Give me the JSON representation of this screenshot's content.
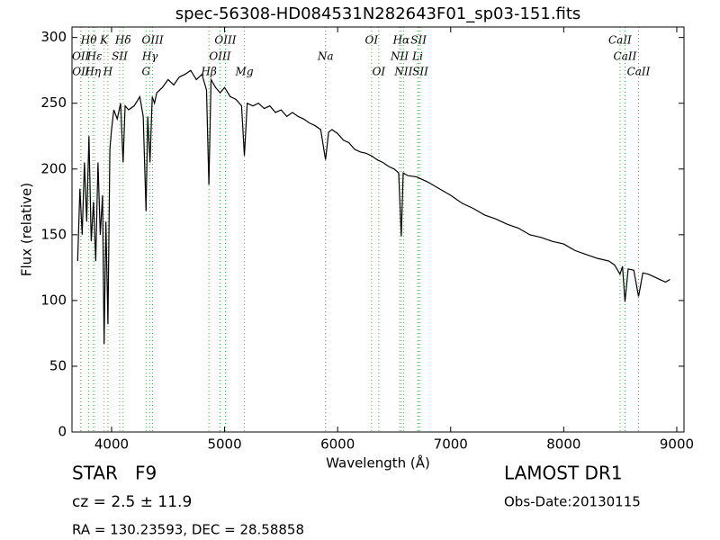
{
  "chart_data": {
    "type": "line",
    "title": "spec-56308-HD084531N282643F01_sp03-151.fits",
    "xlabel": "Wavelength (Å)",
    "ylabel": "Flux (relative)",
    "color": "#000000",
    "line_color": "#44bb44",
    "x": [
      3700,
      3720,
      3740,
      3760,
      3780,
      3800,
      3820,
      3840,
      3860,
      3880,
      3900,
      3920,
      3934,
      3950,
      3968,
      3985,
      4000,
      4020,
      4050,
      4080,
      4102,
      4120,
      4150,
      4200,
      4250,
      4280,
      4305,
      4320,
      4340,
      4360,
      4380,
      4400,
      4450,
      4500,
      4550,
      4600,
      4650,
      4700,
      4750,
      4800,
      4840,
      4861,
      4880,
      4920,
      4960,
      5000,
      5050,
      5100,
      5150,
      5175,
      5200,
      5250,
      5300,
      5350,
      5400,
      5450,
      5500,
      5550,
      5600,
      5650,
      5700,
      5750,
      5800,
      5850,
      5893,
      5920,
      5950,
      6000,
      6050,
      6100,
      6150,
      6200,
      6250,
      6300,
      6350,
      6400,
      6450,
      6500,
      6540,
      6563,
      6580,
      6620,
      6700,
      6800,
      6900,
      7000,
      7100,
      7200,
      7300,
      7400,
      7500,
      7600,
      7700,
      7800,
      7900,
      8000,
      8100,
      8200,
      8300,
      8400,
      8450,
      8498,
      8520,
      8542,
      8570,
      8620,
      8662,
      8700,
      8750,
      8800,
      8850,
      8900,
      8940
    ],
    "values": [
      130,
      185,
      150,
      205,
      160,
      225,
      145,
      175,
      130,
      205,
      150,
      180,
      67,
      160,
      82,
      215,
      230,
      245,
      238,
      250,
      205,
      248,
      245,
      248,
      255,
      240,
      168,
      240,
      205,
      255,
      250,
      258,
      262,
      268,
      264,
      270,
      272,
      275,
      268,
      272,
      260,
      188,
      268,
      262,
      258,
      262,
      255,
      253,
      248,
      210,
      250,
      248,
      250,
      246,
      248,
      243,
      245,
      240,
      243,
      240,
      238,
      235,
      233,
      230,
      207,
      228,
      230,
      227,
      222,
      220,
      215,
      213,
      212,
      210,
      207,
      205,
      202,
      200,
      197,
      149,
      197,
      195,
      194,
      190,
      185,
      180,
      174,
      170,
      165,
      162,
      158,
      155,
      150,
      148,
      145,
      143,
      138,
      135,
      132,
      130,
      127,
      120,
      126,
      99,
      124,
      123,
      103,
      121,
      120,
      118,
      116,
      114,
      116
    ],
    "xlim": [
      3650,
      9064
    ],
    "ylim": [
      0,
      308
    ],
    "xticks": [
      4000,
      5000,
      6000,
      7000,
      8000,
      9000
    ],
    "yticks": [
      0,
      50,
      100,
      150,
      200,
      250,
      300
    ],
    "line_labels": [
      [
        {
          "label": "Hθ",
          "x": 3798
        },
        {
          "label": "K",
          "x": 3934
        },
        {
          "label": "Hδ",
          "x": 4102
        },
        {
          "label": "OIII",
          "x": 4363
        },
        {
          "label": "OIII",
          "x": 5007
        },
        {
          "label": "OI",
          "x": 6300
        },
        {
          "label": "Hα",
          "x": 6563
        },
        {
          "label": "SII",
          "x": 6716
        },
        {
          "label": "CaII",
          "x": 8498
        }
      ],
      [
        {
          "label": "OII",
          "x": 3727
        },
        {
          "label": "Hε",
          "x": 3850
        },
        {
          "label": "SII",
          "x": 4072
        },
        {
          "label": "Hγ",
          "x": 4340
        },
        {
          "label": "OIII",
          "x": 4959
        },
        {
          "label": "Na",
          "x": 5893
        },
        {
          "label": "NII",
          "x": 6548
        },
        {
          "label": "Li",
          "x": 6708
        },
        {
          "label": "CaII",
          "x": 8542
        }
      ],
      [
        {
          "label": "OII",
          "x": 3729
        },
        {
          "label": "Hη",
          "x": 3835
        },
        {
          "label": "H",
          "x": 3968
        },
        {
          "label": "G",
          "x": 4305
        },
        {
          "label": "Hβ",
          "x": 4861
        },
        {
          "label": "Mg",
          "x": 5175
        },
        {
          "label": "OI",
          "x": 6364
        },
        {
          "label": "NII",
          "x": 6583
        },
        {
          "label": "SII",
          "x": 6731
        },
        {
          "label": "CaII",
          "x": 8662
        }
      ]
    ],
    "info": {
      "class": "STAR   F9",
      "cz": "cz = 2.5 ± 11.9",
      "coords": "RA = 130.23593, DEC = 28.58858",
      "survey": "LAMOST DR1",
      "obs_date": "Obs-Date:20130115"
    }
  }
}
